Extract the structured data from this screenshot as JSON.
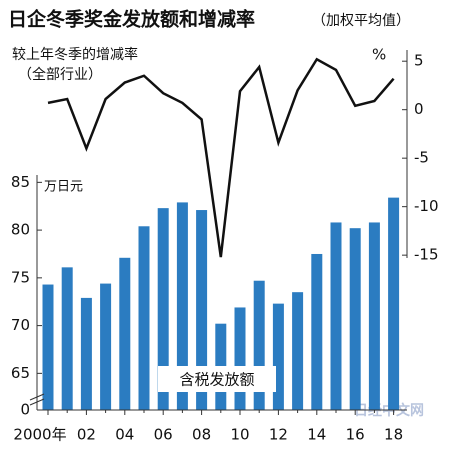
{
  "chart_data": {
    "type": "bar-line",
    "title": "日企冬季奖金发放额和增减率",
    "subtitle": "（加权平均值）",
    "line_label": "较上年冬季的增减率",
    "line_label_note": "（全部行业）",
    "y_unit": "万日元",
    "y2_unit": "%",
    "bar_label": "含税发放额",
    "watermark": "日经中文网",
    "categories": [
      "2000年",
      null,
      "02",
      null,
      "04",
      null,
      "06",
      null,
      "08",
      null,
      "10",
      null,
      "12",
      null,
      "14",
      null,
      "16",
      null,
      "18"
    ],
    "series": [
      {
        "type": "bar",
        "color": "#2b7cc1",
        "values": [
          74.3,
          76.1,
          72.9,
          74.4,
          77.1,
          80.4,
          82.3,
          82.9,
          82.1,
          70.2,
          71.9,
          74.7,
          72.3,
          73.5,
          77.5,
          80.8,
          80.2,
          80.8,
          83.4
        ]
      },
      {
        "type": "line",
        "axis": "y2",
        "color": "#111111",
        "values": [
          0.7,
          1.1,
          -4.0,
          1.1,
          2.8,
          3.5,
          1.7,
          0.7,
          -1.0,
          -15.2,
          1.9,
          4.4,
          -3.4,
          2.0,
          5.2,
          4.1,
          0.4,
          0.9,
          3.2
        ]
      }
    ],
    "ylim": [
      0,
      87
    ],
    "axis_break": [
      0,
      62
    ],
    "yticks": [
      0,
      65,
      70,
      75,
      80,
      85
    ],
    "y2lim": [
      -15.5,
      6
    ],
    "y2ticks": [
      5,
      0,
      -5,
      -10,
      -15
    ]
  }
}
